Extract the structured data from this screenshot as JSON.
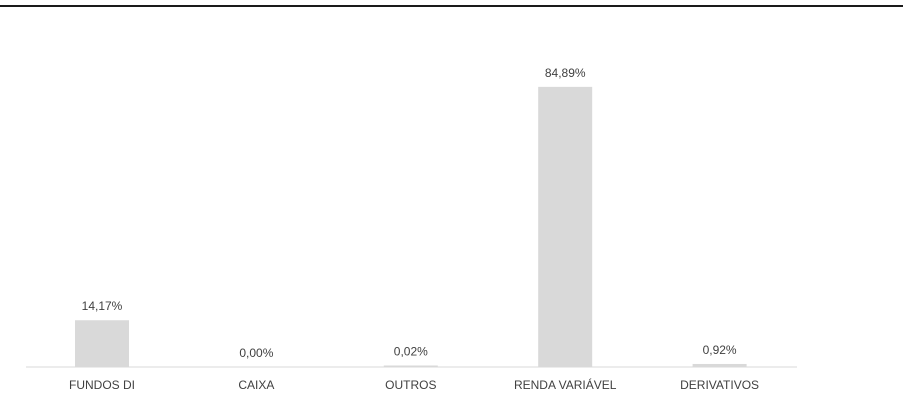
{
  "chart_data": {
    "type": "bar",
    "categories": [
      "FUNDOS DI",
      "CAIXA",
      "OUTROS",
      "RENDA VARIÁVEL",
      "DERIVATIVOS"
    ],
    "values": [
      14.17,
      0.0,
      0.02,
      84.89,
      0.92
    ],
    "data_labels": [
      "14,17%",
      "0,00%",
      "0,02%",
      "84,89%",
      "0,92%"
    ],
    "ylim": [
      0,
      100
    ],
    "grid": false,
    "legend": "none",
    "bar_color": "#d9d9d9",
    "text_color": "#404040"
  }
}
